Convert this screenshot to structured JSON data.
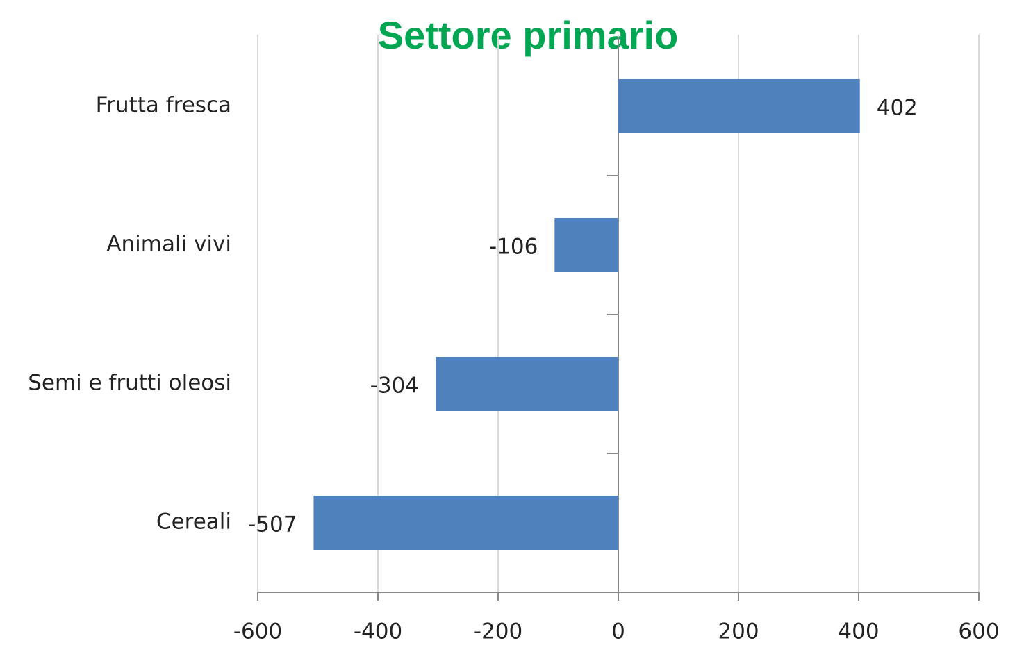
{
  "chart_data": {
    "type": "bar",
    "orientation": "horizontal",
    "title": "Settore primario",
    "categories": [
      "Frutta fresca",
      "Animali vivi",
      "Semi e frutti oleosi",
      "Cereali"
    ],
    "values": [
      402,
      -106,
      -304,
      -507
    ],
    "color": "#4f81bd",
    "title_color": "#00a651",
    "xlim": [
      -600,
      600
    ],
    "xticks": [
      -600,
      -400,
      -200,
      0,
      200,
      400,
      600
    ],
    "grid": true
  }
}
